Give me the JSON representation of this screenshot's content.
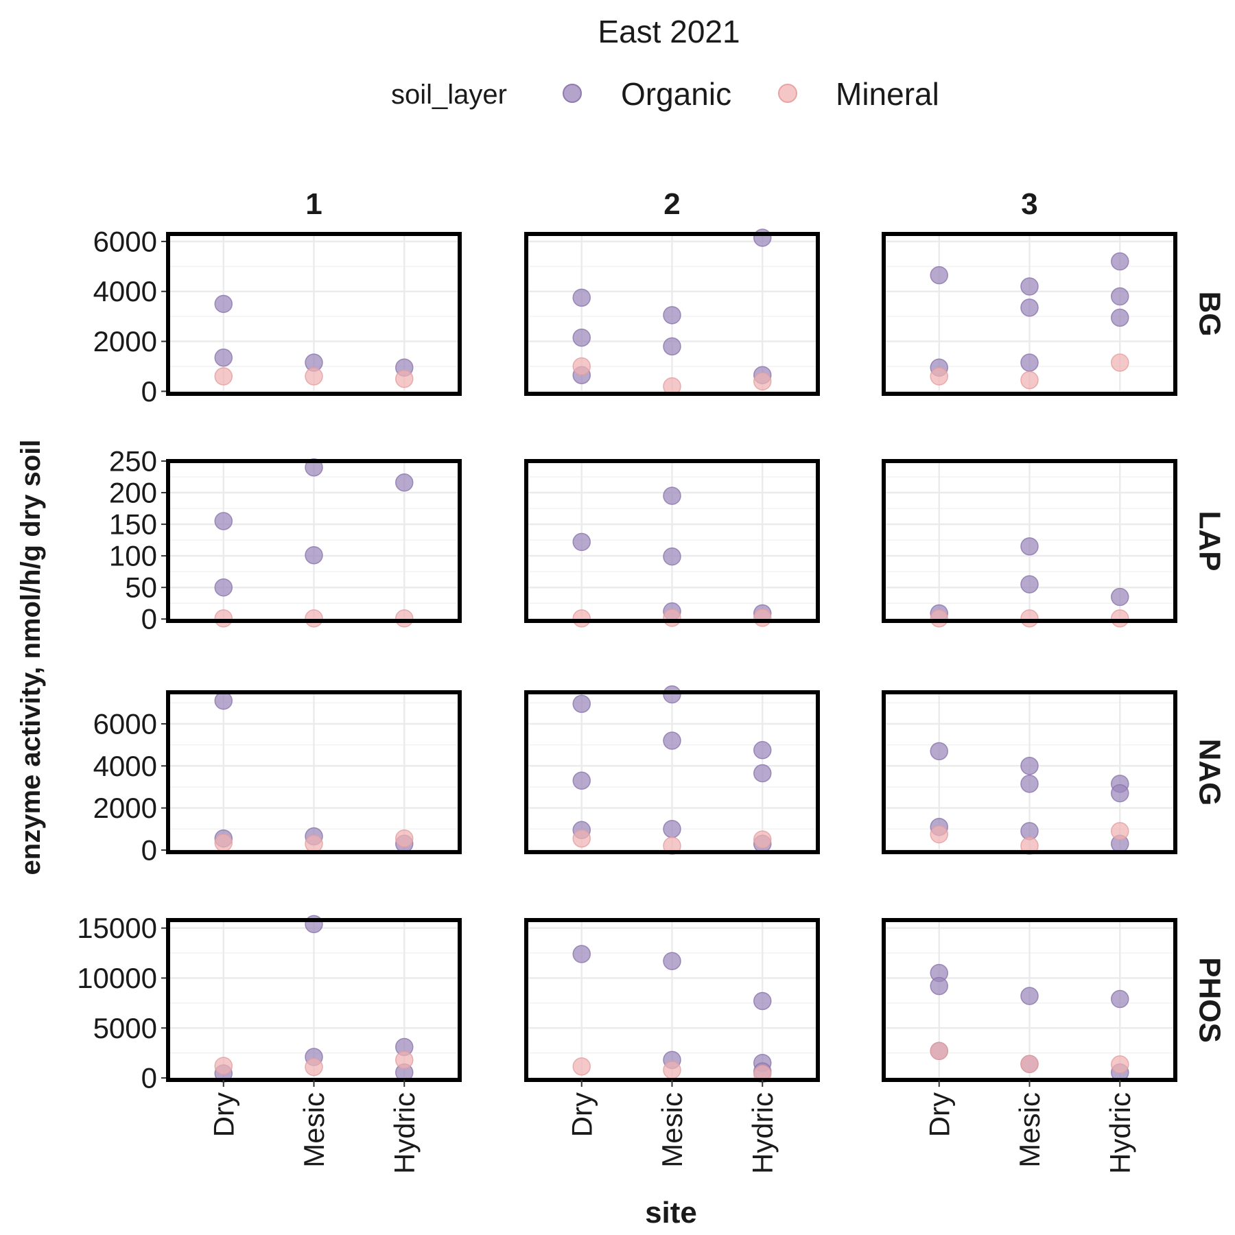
{
  "chart_data": {
    "type": "scatter",
    "title": "East 2021",
    "legend": {
      "title": "soil_layer",
      "placement": "top",
      "entries": [
        {
          "name": "Organic",
          "color": "#9b86bb"
        },
        {
          "name": "Mineral",
          "color": "#f0b3b3"
        }
      ]
    },
    "xlabel": "site",
    "ylabel": "enzyme activity, nmol/h/g dry soil",
    "x_categories": [
      "Dry",
      "Mesic",
      "Hydric"
    ],
    "column_facets": [
      "1",
      "2",
      "3"
    ],
    "grid": true,
    "row_facets": [
      {
        "name": "BG",
        "ylim": [
          -100,
          6300
        ],
        "yticks": [
          0,
          2000,
          4000,
          6000
        ],
        "tick_labels": [
          "0",
          "2000",
          "4000",
          "6000"
        ],
        "panels": [
          {
            "organic": [
              [
                "Dry",
                3500
              ],
              [
                "Dry",
                1350
              ],
              [
                "Mesic",
                1150
              ],
              [
                "Hydric",
                950
              ]
            ],
            "mineral": [
              [
                "Dry",
                600
              ],
              [
                "Mesic",
                600
              ],
              [
                "Hydric",
                500
              ]
            ]
          },
          {
            "organic": [
              [
                "Dry",
                3750
              ],
              [
                "Dry",
                2150
              ],
              [
                "Dry",
                650
              ],
              [
                "Mesic",
                3050
              ],
              [
                "Mesic",
                1800
              ],
              [
                "Hydric",
                6150
              ],
              [
                "Hydric",
                650
              ]
            ],
            "mineral": [
              [
                "Dry",
                1000
              ],
              [
                "Mesic",
                200
              ],
              [
                "Hydric",
                400
              ]
            ]
          },
          {
            "organic": [
              [
                "Dry",
                4650
              ],
              [
                "Dry",
                950
              ],
              [
                "Mesic",
                4200
              ],
              [
                "Mesic",
                3350
              ],
              [
                "Mesic",
                1150
              ],
              [
                "Hydric",
                5200
              ],
              [
                "Hydric",
                3800
              ],
              [
                "Hydric",
                2950
              ]
            ],
            "mineral": [
              [
                "Dry",
                600
              ],
              [
                "Mesic",
                450
              ],
              [
                "Hydric",
                1150
              ]
            ]
          }
        ]
      },
      {
        "name": "LAP",
        "ylim": [
          -3,
          250
        ],
        "yticks": [
          0,
          50,
          100,
          150,
          200,
          250
        ],
        "tick_labels": [
          "0",
          "50",
          "100",
          "150",
          "200",
          "250"
        ],
        "panels": [
          {
            "organic": [
              [
                "Dry",
                155
              ],
              [
                "Dry",
                50
              ],
              [
                "Mesic",
                240
              ],
              [
                "Mesic",
                101
              ],
              [
                "Hydric",
                216
              ]
            ],
            "mineral": [
              [
                "Dry",
                1
              ],
              [
                "Mesic",
                1
              ],
              [
                "Hydric",
                1
              ]
            ]
          },
          {
            "organic": [
              [
                "Dry",
                122
              ],
              [
                "Mesic",
                195
              ],
              [
                "Mesic",
                99
              ],
              [
                "Mesic",
                12
              ],
              [
                "Hydric",
                9
              ]
            ],
            "mineral": [
              [
                "Dry",
                1
              ],
              [
                "Mesic",
                2
              ],
              [
                "Hydric",
                2
              ]
            ]
          },
          {
            "organic": [
              [
                "Dry",
                9
              ],
              [
                "Mesic",
                115
              ],
              [
                "Mesic",
                55
              ],
              [
                "Hydric",
                35
              ]
            ],
            "mineral": [
              [
                "Dry",
                1
              ],
              [
                "Mesic",
                1
              ],
              [
                "Hydric",
                1
              ]
            ]
          }
        ]
      },
      {
        "name": "NAG",
        "ylim": [
          -100,
          7500
        ],
        "yticks": [
          0,
          2000,
          4000,
          6000
        ],
        "tick_labels": [
          "0",
          "2000",
          "4000",
          "6000"
        ],
        "panels": [
          {
            "organic": [
              [
                "Dry",
                7100
              ],
              [
                "Dry",
                550
              ],
              [
                "Mesic",
                650
              ],
              [
                "Hydric",
                300
              ]
            ],
            "mineral": [
              [
                "Dry",
                350
              ],
              [
                "Mesic",
                300
              ],
              [
                "Hydric",
                550
              ]
            ]
          },
          {
            "organic": [
              [
                "Dry",
                6950
              ],
              [
                "Dry",
                3300
              ],
              [
                "Dry",
                950
              ],
              [
                "Mesic",
                7400
              ],
              [
                "Mesic",
                5200
              ],
              [
                "Mesic",
                1000
              ],
              [
                "Hydric",
                4750
              ],
              [
                "Hydric",
                3650
              ],
              [
                "Hydric",
                300
              ]
            ],
            "mineral": [
              [
                "Dry",
                550
              ],
              [
                "Mesic",
                200
              ],
              [
                "Hydric",
                500
              ]
            ]
          },
          {
            "organic": [
              [
                "Dry",
                4700
              ],
              [
                "Dry",
                1100
              ],
              [
                "Mesic",
                4000
              ],
              [
                "Mesic",
                3150
              ],
              [
                "Mesic",
                900
              ],
              [
                "Hydric",
                3150
              ],
              [
                "Hydric",
                2700
              ],
              [
                "Hydric",
                300
              ]
            ],
            "mineral": [
              [
                "Dry",
                750
              ],
              [
                "Mesic",
                200
              ],
              [
                "Hydric",
                900
              ]
            ]
          }
        ]
      },
      {
        "name": "PHOS",
        "ylim": [
          -200,
          15800
        ],
        "yticks": [
          0,
          5000,
          10000,
          15000
        ],
        "tick_labels": [
          "0",
          "5000",
          "10000",
          "15000"
        ],
        "panels": [
          {
            "organic": [
              [
                "Dry",
                450
              ],
              [
                "Mesic",
                15400
              ],
              [
                "Mesic",
                2100
              ],
              [
                "Hydric",
                3100
              ],
              [
                "Hydric",
                550
              ]
            ],
            "mineral": [
              [
                "Dry",
                1200
              ],
              [
                "Mesic",
                1100
              ],
              [
                "Hydric",
                1800
              ]
            ]
          },
          {
            "organic": [
              [
                "Dry",
                12400
              ],
              [
                "Mesic",
                11700
              ],
              [
                "Mesic",
                1800
              ],
              [
                "Hydric",
                7700
              ],
              [
                "Hydric",
                1500
              ],
              [
                "Hydric",
                650
              ]
            ],
            "mineral": [
              [
                "Dry",
                1150
              ],
              [
                "Mesic",
                800
              ],
              [
                "Hydric",
                400
              ]
            ]
          },
          {
            "organic": [
              [
                "Dry",
                10500
              ],
              [
                "Dry",
                9200
              ],
              [
                "Dry",
                2700
              ],
              [
                "Mesic",
                8200
              ],
              [
                "Mesic",
                1400
              ],
              [
                "Hydric",
                7900
              ],
              [
                "Hydric",
                550
              ]
            ],
            "mineral": [
              [
                "Dry",
                2700
              ],
              [
                "Mesic",
                1400
              ],
              [
                "Hydric",
                1350
              ]
            ]
          }
        ]
      }
    ]
  }
}
